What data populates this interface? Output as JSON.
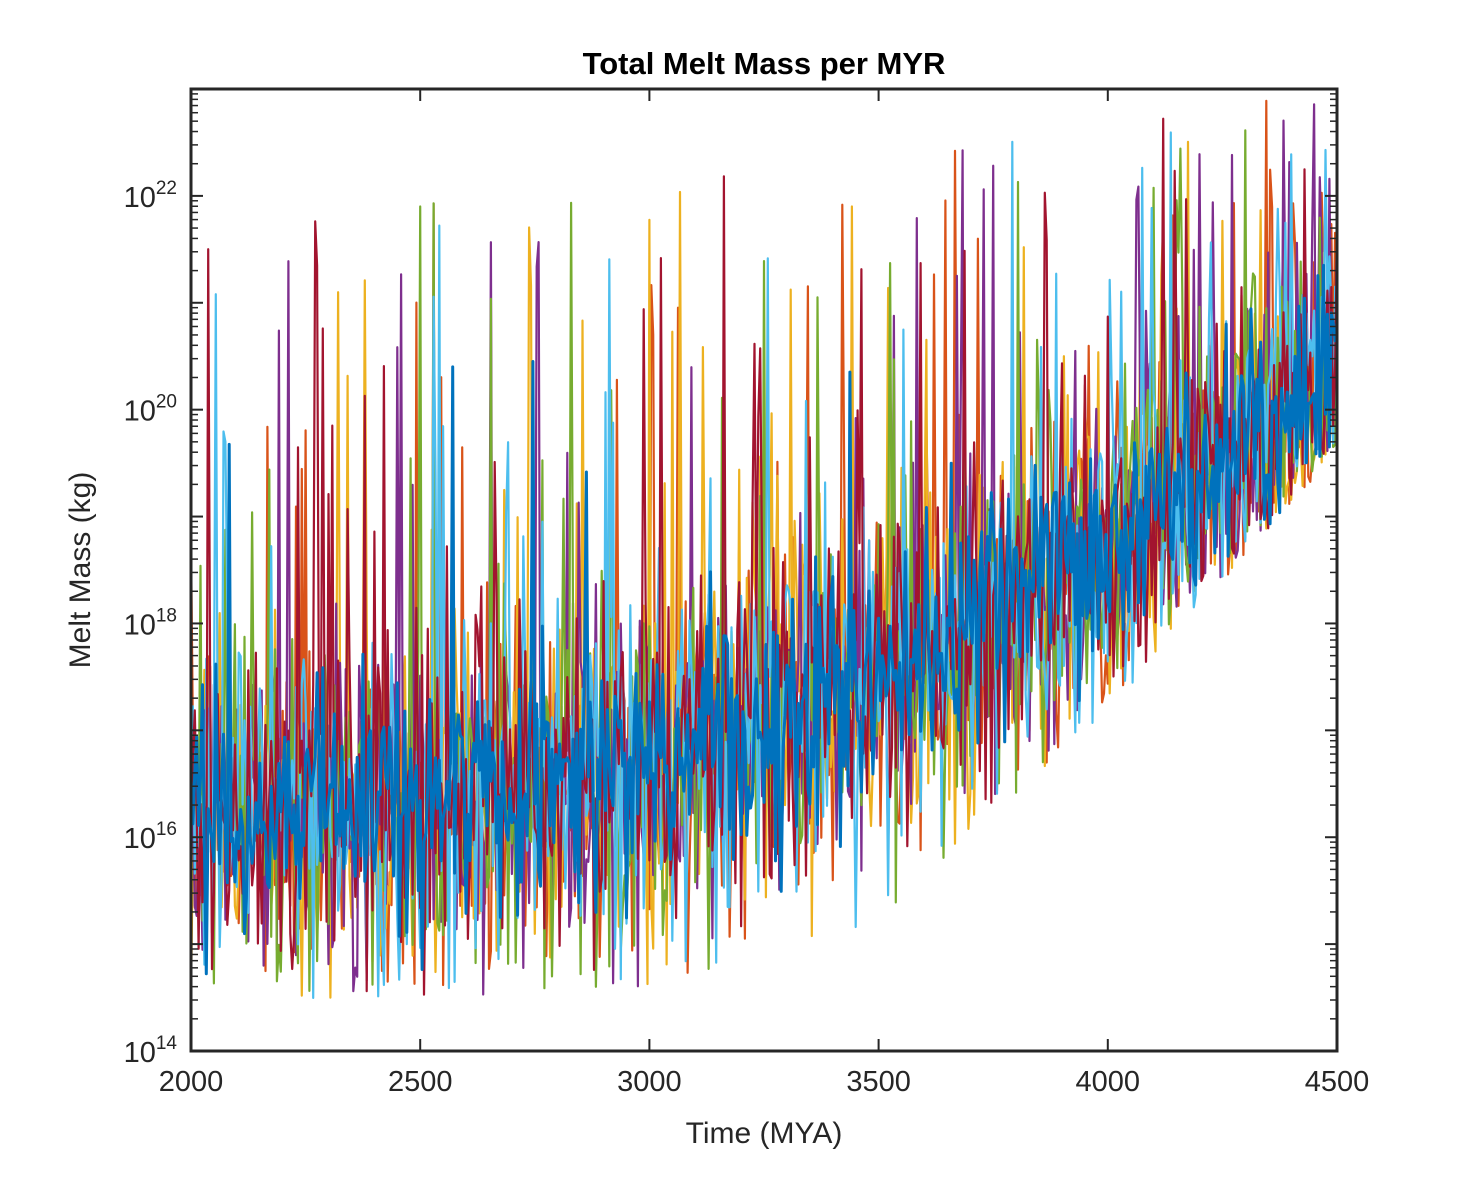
{
  "chart_data": {
    "type": "line",
    "title": "Total Melt Mass per MYR",
    "xlabel": "Time (MYA)",
    "ylabel": "Melt Mass (kg)",
    "xlim": [
      2000,
      4500
    ],
    "ylim": [
      100000000000000.0,
      1e+23
    ],
    "yscale": "log",
    "grid": false,
    "legend": "none",
    "x_ticks": [
      {
        "value": 2000,
        "label": "2000"
      },
      {
        "value": 2500,
        "label": "2500"
      },
      {
        "value": 3000,
        "label": "3000"
      },
      {
        "value": 3500,
        "label": "3500"
      },
      {
        "value": 4000,
        "label": "4000"
      },
      {
        "value": 4500,
        "label": "4500"
      }
    ],
    "y_ticks": [
      {
        "value": 100000000000000.0,
        "base": "10",
        "exp": "14"
      },
      {
        "value": 1e+16,
        "base": "10",
        "exp": "16"
      },
      {
        "value": 1e+18,
        "base": "10",
        "exp": "18"
      },
      {
        "value": 1e+20,
        "base": "10",
        "exp": "20"
      },
      {
        "value": 1e+22,
        "base": "10",
        "exp": "22"
      }
    ],
    "series_colors": [
      "#0072BD",
      "#D95319",
      "#EDB120",
      "#7E2F8E",
      "#77AC30",
      "#4DBEEE",
      "#A2142F"
    ],
    "trend": {
      "x": [
        2000,
        2500,
        3000,
        3500,
        4000,
        4500
      ],
      "median_y": [
        2e+16,
        2e+16,
        5e+16,
        3e+17,
        5e+18,
        2e+20
      ],
      "min_y": [
        300000000000000.0,
        300000000000000.0,
        400000000000000.0,
        1500000000000000.0,
        1.5e+17,
        4e+19
      ],
      "max_y": [
        5e+21,
        1e+22,
        1.5e+22,
        3e+22,
        1e+23,
        1e+23
      ]
    }
  }
}
